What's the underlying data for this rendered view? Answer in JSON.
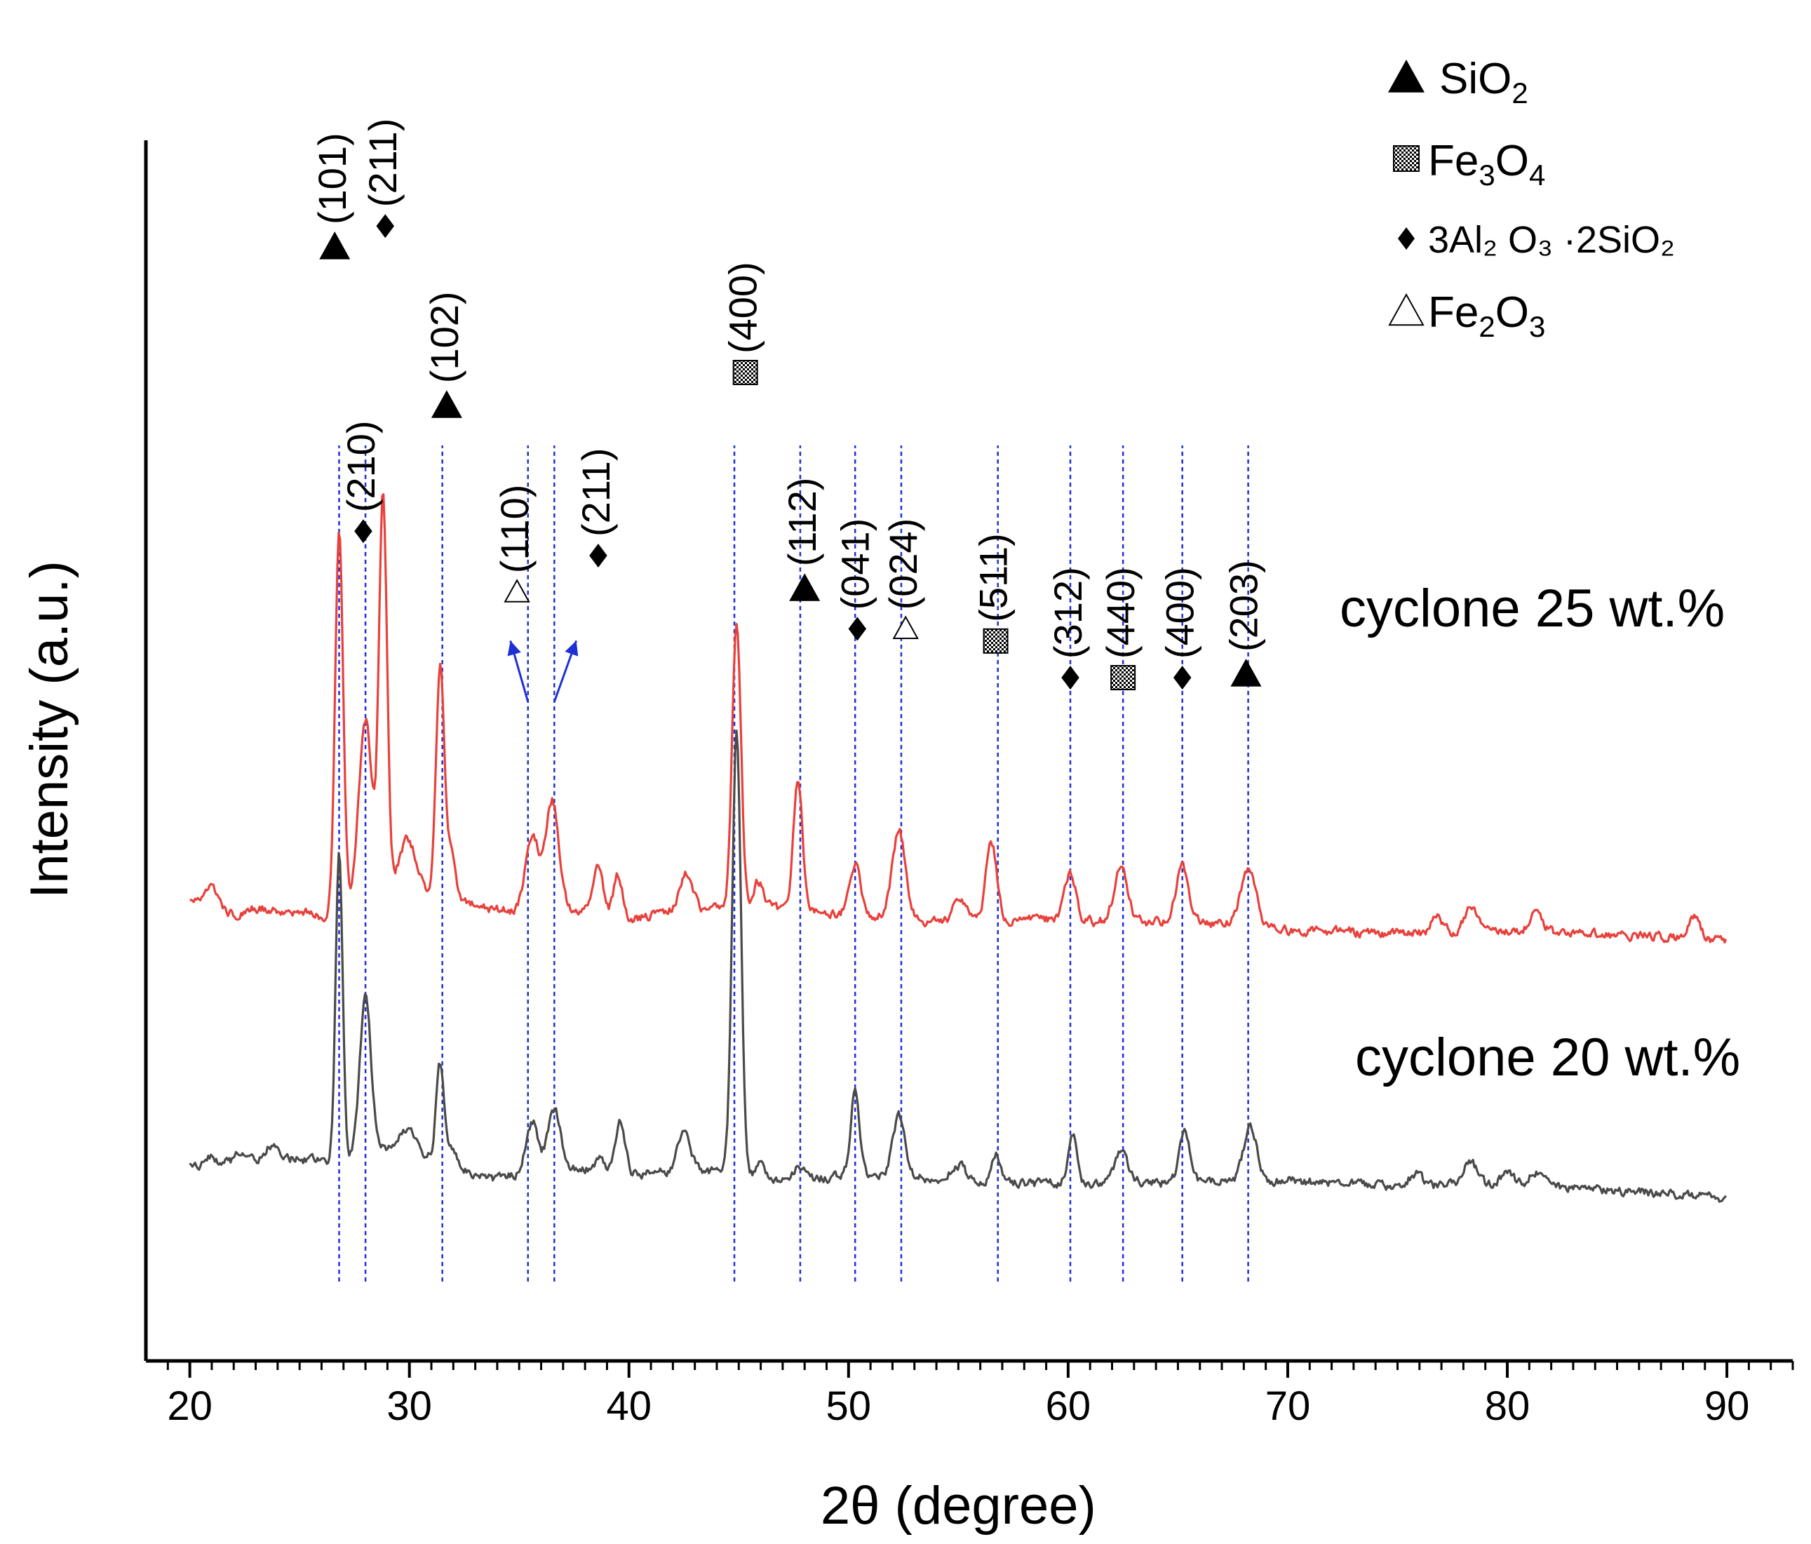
{
  "chart_data": {
    "type": "line",
    "title": "",
    "xlabel": "2θ (degree)",
    "ylabel": "Intensity (a.u.)",
    "xlim": [
      18,
      93
    ],
    "ylim": [
      0,
      100
    ],
    "x_ticks": [
      "20",
      "30",
      "40",
      "50",
      "60",
      "70",
      "80",
      "90"
    ],
    "y_ticks": [],
    "grid": false,
    "legend_position": "top-right",
    "legend": [
      {
        "symbol": "filled-triangle",
        "label": "SiO",
        "sub": "2",
        "rest": ""
      },
      {
        "symbol": "checkered-square",
        "label": "Fe",
        "sub": "3",
        "rest": "O",
        "sub2": "4"
      },
      {
        "symbol": "filled-diamond",
        "label": "3Al₂ O₃ ·2SiO₂"
      },
      {
        "symbol": "open-triangle",
        "label": "Fe",
        "sub": "2",
        "rest": "O",
        "sub2": "3"
      }
    ],
    "series": [
      {
        "name": "cyclone 25 wt.%",
        "color": "#e8413c",
        "baseline": 36.5,
        "noise_seed": 7,
        "points": [
          [
            20,
            37.8
          ],
          [
            21,
            37.2
          ],
          [
            22,
            36.6
          ],
          [
            23,
            37.1
          ],
          [
            24,
            36.8
          ],
          [
            25,
            36.9
          ],
          [
            26,
            36.4
          ],
          [
            30,
            38.8
          ],
          [
            33,
            37.4
          ],
          [
            34,
            36.9
          ],
          [
            38,
            37.0
          ],
          [
            40,
            36.2
          ],
          [
            42,
            36.8
          ],
          [
            44,
            37.0
          ],
          [
            46,
            37.3
          ],
          [
            48,
            36.7
          ],
          [
            50,
            36.6
          ],
          [
            52,
            36.5
          ],
          [
            54,
            36.0
          ],
          [
            56,
            35.8
          ],
          [
            58,
            36.2
          ],
          [
            62,
            36.0
          ],
          [
            66,
            35.9
          ],
          [
            70,
            35.3
          ],
          [
            75,
            35.0
          ],
          [
            80,
            35.2
          ],
          [
            85,
            34.9
          ],
          [
            90,
            34.4
          ]
        ],
        "peaks": [
          [
            21,
            1.5,
            0.25
          ],
          [
            26.8,
            31.5,
            0.18
          ],
          [
            28.0,
            15.0,
            0.3
          ],
          [
            28.8,
            33.0,
            0.18
          ],
          [
            29.9,
            4.0,
            0.4
          ],
          [
            31.4,
            19.0,
            0.18
          ],
          [
            31.9,
            4.0,
            0.2
          ],
          [
            35.6,
            6.0,
            0.3
          ],
          [
            36.5,
            9.0,
            0.3
          ],
          [
            38.6,
            3.5,
            0.2
          ],
          [
            39.5,
            3.5,
            0.2
          ],
          [
            42.6,
            3.0,
            0.3
          ],
          [
            44.9,
            23.5,
            0.2
          ],
          [
            45.9,
            2.0,
            0.2
          ],
          [
            47.7,
            11.0,
            0.2
          ],
          [
            50.3,
            4.0,
            0.25
          ],
          [
            52.3,
            7.0,
            0.3
          ],
          [
            55.1,
            2.0,
            0.3
          ],
          [
            56.5,
            6.5,
            0.25
          ],
          [
            60.1,
            4.0,
            0.25
          ],
          [
            62.4,
            4.5,
            0.3
          ],
          [
            65.2,
            4.5,
            0.3
          ],
          [
            68.2,
            4.5,
            0.35
          ],
          [
            76.8,
            1.5,
            0.25
          ],
          [
            78.3,
            2.0,
            0.3
          ],
          [
            81.3,
            1.5,
            0.3
          ],
          [
            88.5,
            2.0,
            0.25
          ]
        ]
      },
      {
        "name": "cyclone 20 wt.%",
        "color": "#4a4a4a",
        "baseline": 15.0,
        "noise_seed": 13,
        "points": [
          [
            20,
            16.0
          ],
          [
            22,
            16.2
          ],
          [
            24,
            16.6
          ],
          [
            26,
            16.3
          ],
          [
            28.8,
            17.4
          ],
          [
            30,
            17.3
          ],
          [
            33,
            15.2
          ],
          [
            34,
            14.9
          ],
          [
            36,
            15.6
          ],
          [
            38,
            15.7
          ],
          [
            40,
            15.3
          ],
          [
            44,
            15.5
          ],
          [
            47,
            14.9
          ],
          [
            50,
            15.1
          ],
          [
            54,
            15.0
          ],
          [
            58,
            14.5
          ],
          [
            62,
            14.6
          ],
          [
            66,
            14.6
          ],
          [
            70,
            14.8
          ],
          [
            75,
            14.3
          ],
          [
            80,
            14.4
          ],
          [
            85,
            13.9
          ],
          [
            90,
            13.4
          ]
        ],
        "peaks": [
          [
            20.9,
            0.8,
            0.2
          ],
          [
            22.2,
            0.9,
            0.2
          ],
          [
            23.7,
            1.1,
            0.3
          ],
          [
            26.8,
            25.0,
            0.16
          ],
          [
            28.0,
            13.0,
            0.25
          ],
          [
            29.9,
            1.8,
            0.3
          ],
          [
            31.4,
            8.0,
            0.18
          ],
          [
            32.0,
            1.5,
            0.2
          ],
          [
            35.6,
            4.0,
            0.28
          ],
          [
            36.6,
            5.0,
            0.28
          ],
          [
            38.7,
            1.0,
            0.2
          ],
          [
            39.6,
            4.5,
            0.22
          ],
          [
            42.5,
            3.5,
            0.3
          ],
          [
            44.9,
            36.0,
            0.2
          ],
          [
            46.0,
            1.0,
            0.2
          ],
          [
            47.7,
            1.0,
            0.25
          ],
          [
            50.3,
            7.0,
            0.2
          ],
          [
            52.3,
            5.0,
            0.28
          ],
          [
            55.0,
            1.2,
            0.3
          ],
          [
            56.7,
            2.5,
            0.2
          ],
          [
            60.2,
            4.0,
            0.2
          ],
          [
            62.4,
            2.5,
            0.3
          ],
          [
            65.3,
            4.0,
            0.25
          ],
          [
            68.3,
            4.5,
            0.3
          ],
          [
            75.8,
            1.0,
            0.3
          ],
          [
            78.3,
            2.0,
            0.3
          ],
          [
            80.0,
            1.0,
            0.3
          ],
          [
            81.3,
            1.3,
            0.3
          ]
        ]
      }
    ],
    "reference_lines": [
      26.8,
      28.0,
      31.5,
      35.4,
      36.6,
      44.8,
      47.8,
      50.3,
      52.4,
      56.8,
      60.1,
      62.5,
      65.2,
      68.2
    ],
    "peak_annotations": [
      {
        "phase": "filled-triangle",
        "hkl": "(101)",
        "x": 26.6,
        "y": 90.0
      },
      {
        "phase": "filled-diamond",
        "hkl": "(211)",
        "x": 28.9,
        "y": 92.0
      },
      {
        "phase": "filled-diamond",
        "hkl": "(210)",
        "x": 27.9,
        "y": 67.0
      },
      {
        "phase": "filled-triangle",
        "hkl": "(102)",
        "x": 31.7,
        "y": 77.0
      },
      {
        "phase": "open-triangle",
        "hkl": "(110)",
        "x": 34.9,
        "y": 62.0
      },
      {
        "phase": "filled-diamond",
        "hkl": "(211)",
        "x": 38.6,
        "y": 65.0
      },
      {
        "phase": "checkered-square",
        "hkl": "(400)",
        "x": 45.3,
        "y": 80.0
      },
      {
        "phase": "filled-triangle",
        "hkl": "(112)",
        "x": 48.0,
        "y": 62.0
      },
      {
        "phase": "filled-diamond",
        "hkl": "(041)",
        "x": 50.4,
        "y": 59.0
      },
      {
        "phase": "open-triangle",
        "hkl": "(024)",
        "x": 52.6,
        "y": 59.0
      },
      {
        "phase": "checkered-square",
        "hkl": "(511)",
        "x": 56.7,
        "y": 58.0
      },
      {
        "phase": "filled-diamond",
        "hkl": "(312)",
        "x": 60.1,
        "y": 55.0
      },
      {
        "phase": "checkered-square",
        "hkl": "(440)",
        "x": 62.5,
        "y": 55.0
      },
      {
        "phase": "filled-diamond",
        "hkl": "(400)",
        "x": 65.2,
        "y": 55.0
      },
      {
        "phase": "filled-triangle",
        "hkl": "(203)",
        "x": 68.1,
        "y": 55.0
      }
    ],
    "arrows": [
      {
        "from": [
          35.4,
          54.0
        ],
        "to": [
          34.6,
          59.0
        ]
      },
      {
        "from": [
          36.6,
          54.0
        ],
        "to": [
          37.6,
          59.0
        ]
      }
    ]
  }
}
